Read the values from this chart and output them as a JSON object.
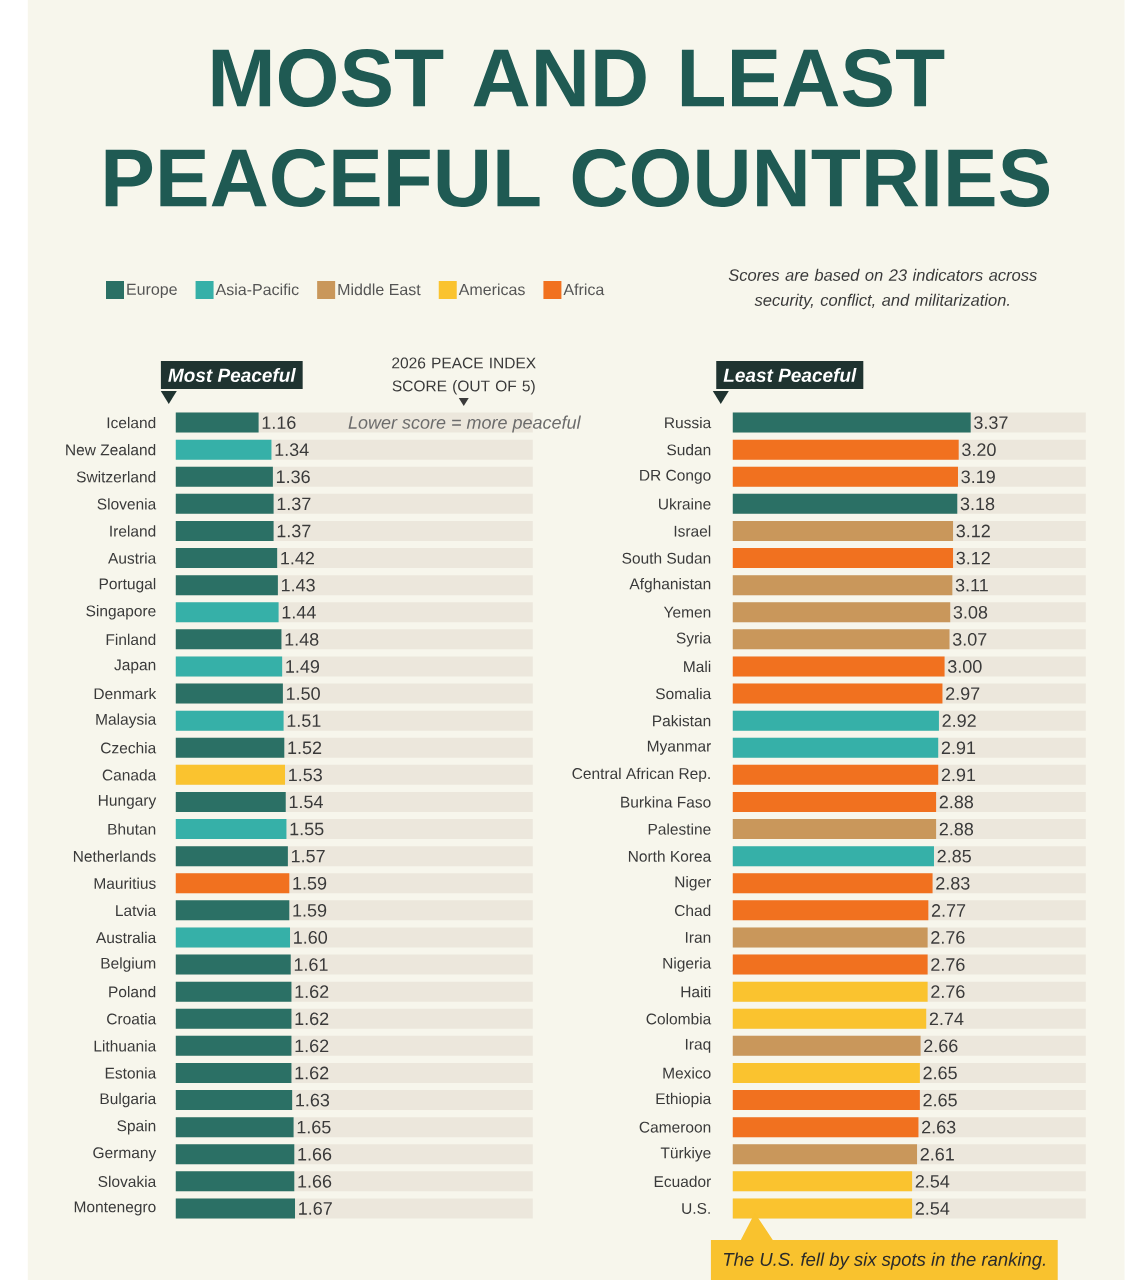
{
  "chart_data": [
    {
      "type": "bar",
      "orientation": "horizontal",
      "title": "MOST AND LEAST PEACEFUL COUNTRIES",
      "subtitle": "Most Peaceful",
      "xlabel": "2026 PEACE INDEX SCORE (OUT OF 5)",
      "annotations": [
        "Lower score = more peaceful"
      ],
      "legend": "top",
      "xlim": [
        0,
        5
      ],
      "categories": [
        "Iceland",
        "New Zealand",
        "Switzerland",
        "Slovenia",
        "Ireland",
        "Austria",
        "Portugal",
        "Singapore",
        "Finland",
        "Japan",
        "Denmark",
        "Malaysia",
        "Czechia",
        "Canada",
        "Hungary",
        "Bhutan",
        "Netherlands",
        "Mauritius",
        "Latvia",
        "Australia",
        "Belgium",
        "Poland",
        "Croatia",
        "Lithuania",
        "Estonia",
        "Bulgaria",
        "Spain",
        "Germany",
        "Slovakia",
        "Montenegro"
      ],
      "series": [
        {
          "name": "Europe",
          "color": "#2b7065",
          "values": [
            1.16,
            null,
            1.36,
            1.37,
            1.37,
            1.42,
            1.43,
            null,
            1.48,
            null,
            1.5,
            null,
            1.52,
            null,
            1.54,
            null,
            1.57,
            null,
            1.59,
            null,
            1.61,
            1.62,
            1.62,
            1.62,
            1.62,
            1.63,
            1.65,
            1.66,
            1.66,
            1.67
          ],
          "value_labels": [
            "1.16",
            null,
            "1.36",
            "1.37",
            "1.37",
            "1.42",
            "1.43",
            null,
            "1.48",
            null,
            "1.50",
            null,
            "1.52",
            null,
            "1.54",
            null,
            "1.57",
            null,
            "1.59",
            null,
            "1.61",
            "1.62",
            "1.62",
            "1.62",
            "1.62",
            "1.63",
            "1.65",
            "1.66",
            "1.66",
            "1.67"
          ]
        },
        {
          "name": "Asia-Pacific",
          "color": "#36b0a8",
          "values": [
            null,
            1.34,
            null,
            null,
            null,
            null,
            null,
            1.44,
            null,
            1.49,
            null,
            1.51,
            null,
            null,
            null,
            1.55,
            null,
            null,
            null,
            1.6,
            null,
            null,
            null,
            null,
            null,
            null,
            null,
            null,
            null,
            null
          ],
          "value_labels": [
            null,
            "1.34",
            null,
            null,
            null,
            null,
            null,
            "1.44",
            null,
            "1.49",
            null,
            "1.51",
            null,
            null,
            null,
            "1.55",
            null,
            null,
            null,
            "1.60",
            null,
            null,
            null,
            null,
            null,
            null,
            null,
            null,
            null,
            null
          ]
        },
        {
          "name": "Middle East",
          "color": "#c9975b",
          "values": [
            null,
            null,
            null,
            null,
            null,
            null,
            null,
            null,
            null,
            null,
            null,
            null,
            null,
            null,
            null,
            null,
            null,
            null,
            null,
            null,
            null,
            null,
            null,
            null,
            null,
            null,
            null,
            null,
            null,
            null
          ]
        },
        {
          "name": "Americas",
          "color": "#fac32f",
          "values": [
            null,
            null,
            null,
            null,
            null,
            null,
            null,
            null,
            null,
            null,
            null,
            null,
            null,
            1.53,
            null,
            null,
            null,
            null,
            null,
            null,
            null,
            null,
            null,
            null,
            null,
            null,
            null,
            null,
            null,
            null
          ],
          "value_labels": [
            null,
            null,
            null,
            null,
            null,
            null,
            null,
            null,
            null,
            null,
            null,
            null,
            null,
            "1.53",
            null,
            null,
            null,
            null,
            null,
            null,
            null,
            null,
            null,
            null,
            null,
            null,
            null,
            null,
            null,
            null
          ]
        },
        {
          "name": "Africa",
          "color": "#f1711f",
          "values": [
            null,
            null,
            null,
            null,
            null,
            null,
            null,
            null,
            null,
            null,
            null,
            null,
            null,
            null,
            null,
            null,
            null,
            1.59,
            null,
            null,
            null,
            null,
            null,
            null,
            null,
            null,
            null,
            null,
            null,
            null
          ],
          "value_labels": [
            null,
            null,
            null,
            null,
            null,
            null,
            null,
            null,
            null,
            null,
            null,
            null,
            null,
            null,
            null,
            null,
            null,
            "1.59",
            null,
            null,
            null,
            null,
            null,
            null,
            null,
            null,
            null,
            null,
            null,
            null
          ]
        }
      ]
    },
    {
      "type": "bar",
      "orientation": "horizontal",
      "title": "Least Peaceful",
      "annotations": [
        "Scores are based on 23 indicators across security, conflict, and militarization.",
        "The U.S. fell by six spots in the ranking."
      ],
      "xlim": [
        0,
        5
      ],
      "categories": [
        "Russia",
        "Sudan",
        "DR Congo",
        "Ukraine",
        "Israel",
        "South Sudan",
        "Afghanistan",
        "Yemen",
        "Syria",
        "Mali",
        "Somalia",
        "Pakistan",
        "Myanmar",
        "Central African Rep.",
        "Burkina Faso",
        "Palestine",
        "North Korea",
        "Niger",
        "Chad",
        "Iran",
        "Nigeria",
        "Haiti",
        "Colombia",
        "Iraq",
        "Mexico",
        "Ethiopia",
        "Cameroon",
        "Türkiye",
        "Ecuador",
        "U.S."
      ],
      "series": [
        {
          "color": "#2b7065",
          "values": [
            3.37,
            null,
            null,
            3.18,
            null,
            null,
            null,
            null,
            null,
            null,
            null,
            null,
            null,
            null,
            null,
            null,
            null,
            null,
            null,
            null,
            null,
            null,
            null,
            null,
            null,
            null,
            null,
            null,
            null,
            null
          ],
          "value_labels": [
            "3.37",
            null,
            null,
            "3.18",
            null,
            null,
            null,
            null,
            null,
            null,
            null,
            null,
            null,
            null,
            null,
            null,
            null,
            null,
            null,
            null,
            null,
            null,
            null,
            null,
            null,
            null,
            null,
            null,
            null,
            null
          ]
        },
        {
          "color": "#36b0a8",
          "values": [
            null,
            null,
            null,
            null,
            null,
            null,
            null,
            null,
            null,
            null,
            null,
            2.92,
            2.91,
            null,
            null,
            null,
            2.85,
            null,
            null,
            null,
            null,
            null,
            null,
            null,
            null,
            null,
            null,
            null,
            null,
            null
          ],
          "value_labels": [
            null,
            null,
            null,
            null,
            null,
            null,
            null,
            null,
            null,
            null,
            null,
            "2.92",
            "2.91",
            null,
            null,
            null,
            "2.85",
            null,
            null,
            null,
            null,
            null,
            null,
            null,
            null,
            null,
            null,
            null,
            null,
            null
          ]
        },
        {
          "color": "#c9975b",
          "values": [
            null,
            null,
            null,
            null,
            3.12,
            null,
            3.11,
            3.08,
            3.07,
            null,
            null,
            null,
            null,
            null,
            null,
            2.88,
            null,
            null,
            null,
            2.76,
            null,
            null,
            null,
            2.66,
            null,
            null,
            null,
            2.61,
            null,
            null
          ],
          "value_labels": [
            null,
            null,
            null,
            null,
            "3.12",
            null,
            "3.11",
            "3.08",
            "3.07",
            null,
            null,
            null,
            null,
            null,
            null,
            "2.88",
            null,
            null,
            null,
            "2.76",
            null,
            null,
            null,
            "2.66",
            null,
            null,
            null,
            "2.61",
            null,
            null
          ]
        },
        {
          "color": "#fac32f",
          "values": [
            null,
            null,
            null,
            null,
            null,
            null,
            null,
            null,
            null,
            null,
            null,
            null,
            null,
            null,
            null,
            null,
            null,
            null,
            null,
            null,
            null,
            2.76,
            2.74,
            null,
            2.65,
            null,
            null,
            null,
            2.54,
            2.54
          ],
          "value_labels": [
            null,
            null,
            null,
            null,
            null,
            null,
            null,
            null,
            null,
            null,
            null,
            null,
            null,
            null,
            null,
            null,
            null,
            null,
            null,
            null,
            null,
            "2.76",
            "2.74",
            null,
            "2.65",
            null,
            null,
            null,
            "2.54",
            "2.54"
          ]
        },
        {
          "color": "#f1711f",
          "values": [
            null,
            3.2,
            3.19,
            null,
            null,
            3.12,
            null,
            null,
            null,
            3.0,
            2.97,
            null,
            null,
            2.91,
            2.88,
            null,
            null,
            2.83,
            2.77,
            null,
            2.76,
            null,
            null,
            null,
            null,
            2.65,
            2.63,
            null,
            null,
            null
          ],
          "value_labels": [
            null,
            "3.20",
            "3.19",
            null,
            null,
            "3.12",
            null,
            null,
            null,
            "3.00",
            "2.97",
            null,
            null,
            "2.91",
            "2.88",
            null,
            null,
            "2.83",
            "2.77",
            null,
            "2.76",
            null,
            null,
            null,
            null,
            "2.65",
            "2.63",
            null,
            null,
            null
          ]
        }
      ]
    }
  ]
}
